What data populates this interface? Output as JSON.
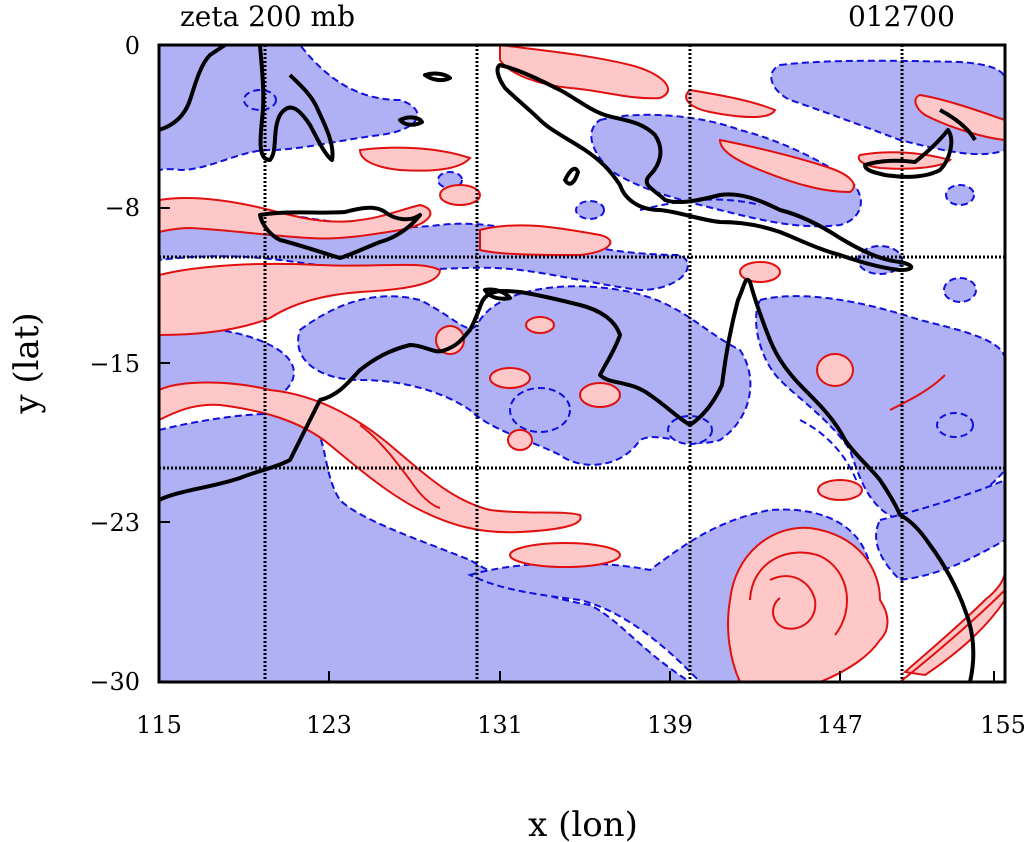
{
  "header": {
    "title_left": "zeta 200 mb",
    "title_right": "012700"
  },
  "axes": {
    "xlabel": "x (lon)",
    "ylabel": "y (lat)",
    "x_ticks": [
      "115",
      "123",
      "131",
      "139",
      "147",
      "155"
    ],
    "y_ticks": [
      "0",
      "−8",
      "−15",
      "−23",
      "−30"
    ],
    "xlim": [
      115,
      155
    ],
    "ylim": [
      -30,
      0
    ]
  },
  "map": {
    "region": "Australia / Indonesia / New Guinea",
    "field": "relative vorticity (zeta) at 200 mb",
    "positive_color": "#ffc8c8",
    "positive_line_color": "#e01010",
    "negative_color": "#b0b0f4",
    "negative_line_color": "#1010e0",
    "coastline_color": "#000000",
    "grid": true
  }
}
